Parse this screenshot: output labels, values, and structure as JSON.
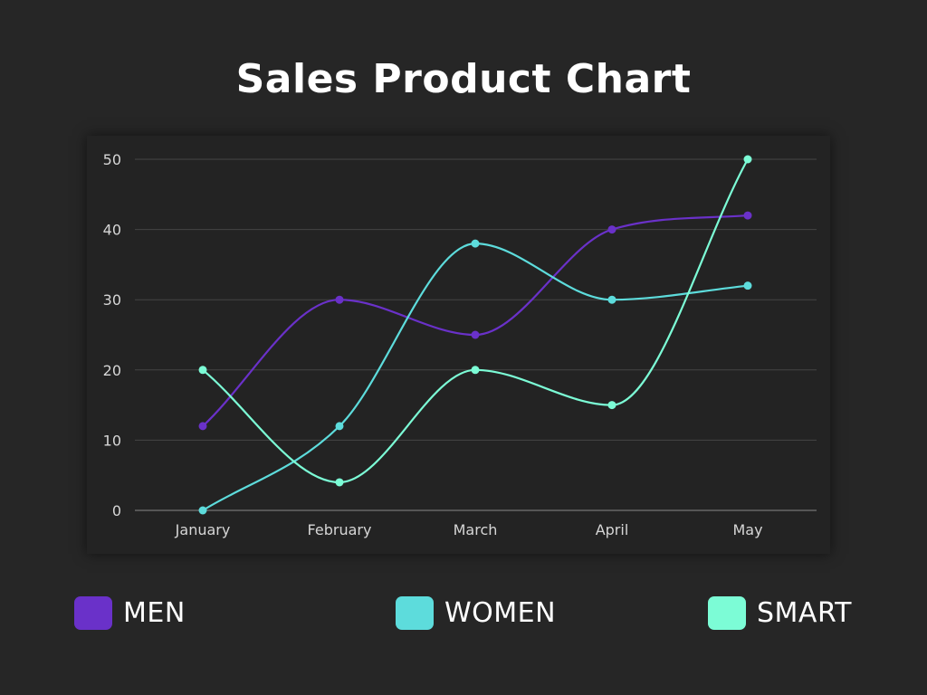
{
  "chart_data": {
    "type": "line",
    "title": "Sales Product Chart",
    "categories": [
      "January",
      "February",
      "March",
      "April",
      "May"
    ],
    "ylim": [
      0,
      50
    ],
    "yticks": [
      0,
      10,
      20,
      30,
      40,
      50
    ],
    "grid": true,
    "legend_position": "bottom",
    "series": [
      {
        "name": "MEN",
        "color": "#6A31C9",
        "values": [
          12,
          30,
          25,
          40,
          42
        ]
      },
      {
        "name": "WOMEN",
        "color": "#5DDCDC",
        "values": [
          0,
          12,
          38,
          30,
          32
        ]
      },
      {
        "name": "SMART",
        "color": "#7CFCD6",
        "values": [
          20,
          4,
          20,
          15,
          50
        ]
      }
    ]
  }
}
